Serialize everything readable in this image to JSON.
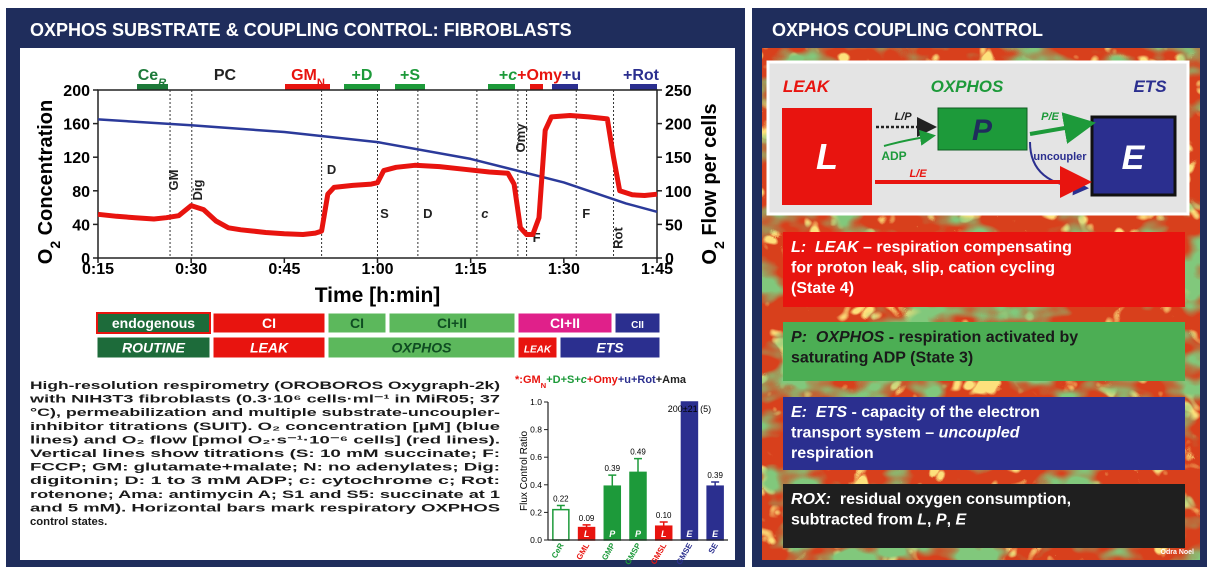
{
  "left_panel": {
    "title": "OXPHOS SUBSTRATE & COUPLING CONTROL: FIBROBLASTS",
    "states": {
      "row1": [
        {
          "text": "endogenous",
          "fill": "#1d6b3a",
          "color": "#ffffff",
          "border": "#e8140f"
        },
        {
          "text": "CI",
          "fill": "#e8140f",
          "color": "#ffffff"
        },
        {
          "text": "CI",
          "fill": "#5cb85c",
          "color": "#0f4d22"
        },
        {
          "text": "CI+II",
          "fill": "#5cb85c",
          "color": "#0f4d22"
        },
        {
          "text": "CI+II",
          "fill": "#e0208a",
          "color": "#ffffff"
        },
        {
          "text": "CII",
          "fill": "#2b2f8f",
          "color": "#ffffff"
        }
      ],
      "row2": [
        {
          "text": "ROUTINE",
          "fill": "#1d6b3a",
          "color": "#ffffff",
          "italic": true
        },
        {
          "text": "LEAK",
          "fill": "#e8140f",
          "color": "#ffffff",
          "italic": true
        },
        {
          "text": "OXPHOS",
          "fill": "#5cb85c",
          "color": "#0f4d22",
          "italic": true
        },
        {
          "text": "LEAK",
          "fill": "#e8140f",
          "color": "#ffffff",
          "italic": true
        },
        {
          "text": "ETS",
          "fill": "#2b2f8f",
          "color": "#ffffff",
          "italic": true
        }
      ]
    },
    "caption": [
      "High-resolution respirometry (OROBOROS Oxygraph-2k)",
      "with NIH3T3 fibroblasts (0.3·10⁶ cells·ml⁻¹ in MiR05; 37",
      "°C), permeabilization and multiple substrate-uncoupler-",
      "inhibitor titrations (SUIT). O₂ concentration [µM] (blue",
      "lines) and O₂ flow [pmol O₂·s⁻¹·10⁻⁶ cells] (red lines).",
      "Vertical lines show titrations (S: 10 mM succinate; F:",
      "FCCP; GM: glutamate+malate; N: no adenylates; Dig:",
      "digitonin; D: 1 to 3 mM ADP; c: cytochrome c; Rot:",
      "rotenone; Ama: antimycin A; S1 and S5: succinate at 1",
      "and 5 mM). Horizontal bars mark respiratory OXPHOS",
      "control states."
    ]
  },
  "chart_data": [
    {
      "type": "line",
      "titrations": [
        [
          {
            "text": "Ce",
            "color": "#1d7a3a"
          },
          {
            "text": "R",
            "color": "#1d7a3a",
            "sub": true,
            "italic": true
          }
        ],
        [
          {
            "text": "PC",
            "color": "#222222"
          }
        ],
        [
          {
            "text": "GM",
            "color": "#e8140f"
          },
          {
            "text": "N",
            "color": "#e8140f",
            "sub": true
          }
        ],
        [
          {
            "text": "+D",
            "color": "#1d9a3a"
          }
        ],
        [
          {
            "text": "+S",
            "color": "#1d9a3a"
          }
        ],
        [
          {
            "text": "+",
            "color": "#1d9a3a"
          },
          {
            "text": "c",
            "color": "#1d9a3a",
            "italic": true
          },
          {
            "text": "+Omy",
            "color": "#e8140f"
          },
          {
            "text": "+u",
            "color": "#2b2f8f"
          }
        ],
        [
          {
            "text": "+Rot",
            "color": "#2b2f8f"
          }
        ]
      ],
      "x_label": "Time [h:min]",
      "y_label": [
        {
          "text": "O"
        },
        {
          "text": "2",
          "sub": true
        },
        {
          "text": " Concentration"
        }
      ],
      "y2_label": [
        {
          "text": "O"
        },
        {
          "text": "2",
          "sub": true
        },
        {
          "text": " Flow per cells"
        }
      ],
      "xlim": [
        15,
        105
      ],
      "xticks": [
        {
          "value": 15,
          "label": "0:15"
        },
        {
          "value": 30,
          "label": "0:30"
        },
        {
          "value": 45,
          "label": "0:45"
        },
        {
          "value": 60,
          "label": "1:00"
        },
        {
          "value": 75,
          "label": "1:15"
        },
        {
          "value": 90,
          "label": "1:30"
        },
        {
          "value": 105,
          "label": "1:45"
        }
      ],
      "ylim": [
        0,
        200
      ],
      "yticks": [
        0,
        40,
        80,
        120,
        160,
        200
      ],
      "y2lim": [
        0,
        250
      ],
      "y2ticks": [
        0,
        50,
        100,
        150,
        200,
        250
      ],
      "series": [
        {
          "color": "#2b3a9a",
          "x": [
            15,
            30,
            45,
            60,
            75,
            90,
            100,
            105
          ],
          "values": [
            165,
            158,
            150,
            138,
            118,
            90,
            65,
            55
          ]
        },
        {
          "color": "#e8140f",
          "axis": "y2",
          "x": [
            15,
            18,
            21,
            24,
            26,
            28,
            30,
            32,
            34,
            36,
            38,
            40,
            42,
            45,
            48,
            50,
            51,
            52,
            53,
            56,
            59,
            60,
            61,
            63,
            66,
            70,
            74,
            78,
            81,
            82,
            83,
            84,
            85,
            86,
            87,
            88,
            91,
            94,
            97,
            98,
            99,
            101,
            103,
            105
          ],
          "values": [
            65,
            62,
            60,
            58,
            60,
            63,
            78,
            72,
            55,
            45,
            42,
            40,
            38,
            36,
            35,
            37,
            40,
            95,
            105,
            108,
            110,
            112,
            130,
            135,
            138,
            136,
            132,
            128,
            126,
            110,
            45,
            35,
            35,
            60,
            190,
            210,
            212,
            210,
            207,
            150,
            100,
            94,
            93,
            95
          ]
        }
      ],
      "annotations": [
        {
          "label": "GM",
          "x": 26.6
        },
        {
          "label": "Dig",
          "x": 30.1
        },
        {
          "label": "D",
          "x": 51
        },
        {
          "label": "S",
          "x": 60
        },
        {
          "label": "D",
          "x": 66.5
        },
        {
          "label": "c",
          "x": 76,
          "italic": true
        },
        {
          "label": "Omy",
          "x": 82.6
        },
        {
          "label": "F",
          "x": 84
        },
        {
          "label": "F",
          "x": 92
        },
        {
          "label": "Rot",
          "x": 98
        }
      ]
    },
    {
      "type": "bar",
      "title": [
        {
          "text": "*:GM",
          "color": "#e8140f"
        },
        {
          "text": "N",
          "color": "#e8140f",
          "sub": true
        },
        {
          "text": "+D+S+",
          "color": "#1d9a3a"
        },
        {
          "text": "c",
          "color": "#1d9a3a",
          "italic": true
        },
        {
          "text": "+Omy",
          "color": "#e8140f"
        },
        {
          "text": "+u+Rot",
          "color": "#2b2f8f"
        },
        {
          "text": "+Ama",
          "color": "#222222"
        }
      ],
      "y_label": "Flux Control Ratio",
      "categories": [
        "CeR",
        "GML",
        "GMP",
        "GMSP",
        "GMSL",
        "GMSE",
        "SE"
      ],
      "values": [
        0.22,
        0.09,
        0.39,
        0.49,
        0.1,
        1,
        0.39
      ],
      "errors": [
        0.03,
        0.02,
        0.08,
        0.1,
        0.03,
        0,
        0.03
      ],
      "value_labels": [
        "0.22",
        "0.09",
        "0.39",
        "0.49",
        "0.10",
        null,
        "0.39"
      ],
      "colors": [
        "#1d9a3a",
        "#e8140f",
        "#1d9a3a",
        "#1d9a3a",
        "#e8140f",
        "#2b2f8f",
        "#2b2f8f"
      ],
      "fills": [
        "#ffffff",
        "#e8140f",
        "#1d9a3a",
        "#1d9a3a",
        "#e8140f",
        "#2b2f8f",
        "#2b2f8f"
      ],
      "bar_tags": [
        null,
        "L",
        "P",
        "P",
        "L",
        "E",
        "E"
      ],
      "annotation": "200±21 (5)",
      "ylim": [
        0,
        1
      ],
      "yticks": [
        {
          "value": 0,
          "label": "0.0"
        },
        0.2,
        0.4,
        0.6,
        0.8,
        {
          "value": 1,
          "label": "1.0"
        }
      ]
    }
  ],
  "right_panel": {
    "title": "OXPHOS COUPLING CONTROL",
    "diagram": {
      "headers": [
        {
          "text": "LEAK",
          "color": "#e8140f"
        },
        {
          "text": "OXPHOS",
          "color": "#1d9a3a"
        },
        {
          "text": "ETS",
          "color": "#2b2f8f"
        }
      ],
      "boxes": [
        "L",
        "P",
        "E"
      ],
      "arrows": {
        "lp": "L/P",
        "adp": "ADP",
        "pe": "P/E",
        "uncoupler": "uncoupler",
        "le": "L/E"
      }
    },
    "definitions": [
      {
        "fill": "#e8140f",
        "color": "#ffffff",
        "lines": [
          [
            {
              "text": "L:  LEAK",
              "italic": true
            },
            {
              "text": " – respiration compensating"
            }
          ],
          [
            {
              "text": "for proton leak, slip, cation cycling"
            }
          ],
          [
            {
              "text": "(State 4)"
            }
          ]
        ]
      },
      {
        "fill": "#4cae54",
        "color": "#1a1a1a",
        "lines": [
          [
            {
              "text": "P:  OXPHOS",
              "italic": true
            },
            {
              "text": " - respiration activated by"
            }
          ],
          [
            {
              "text": "saturating ADP (State 3)"
            }
          ]
        ]
      },
      {
        "fill": "#2b2f8f",
        "color": "#ffffff",
        "lines": [
          [
            {
              "text": "E:  ETS",
              "italic": true
            },
            {
              "text": " - capacity of the electron"
            }
          ],
          [
            {
              "text": "transport system – "
            },
            {
              "text": "uncoupled",
              "italic": true
            }
          ],
          [
            {
              "text": "respiration"
            }
          ]
        ]
      },
      {
        "fill": "#1f1f1f",
        "color": "#ffffff",
        "lines": [
          [
            {
              "text": "ROX:",
              "italic": true
            },
            {
              "text": "  residual oxygen consumption,"
            }
          ],
          [
            {
              "text": "subtracted from "
            },
            {
              "text": "L",
              "italic": true
            },
            {
              "text": ", "
            },
            {
              "text": "P",
              "italic": true
            },
            {
              "text": ", "
            },
            {
              "text": "E",
              "italic": true
            }
          ]
        ]
      }
    ],
    "credit": "Odra Noel"
  }
}
